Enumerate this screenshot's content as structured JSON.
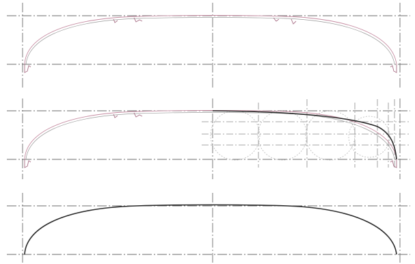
{
  "diagram": {
    "panels": [
      {
        "id": "panel-1",
        "content": "traced-vessel-profile"
      },
      {
        "id": "panel-2",
        "content": "profile-fitting-with-construction-circles"
      },
      {
        "id": "panel-3",
        "content": "fitted-profile"
      }
    ],
    "colors": {
      "background": "#ffffff",
      "center_line": "#6b6b6b",
      "trace": "#c58aa0",
      "fitted_curve": "#2a2a2a",
      "construction": "#b9b9b9"
    }
  }
}
